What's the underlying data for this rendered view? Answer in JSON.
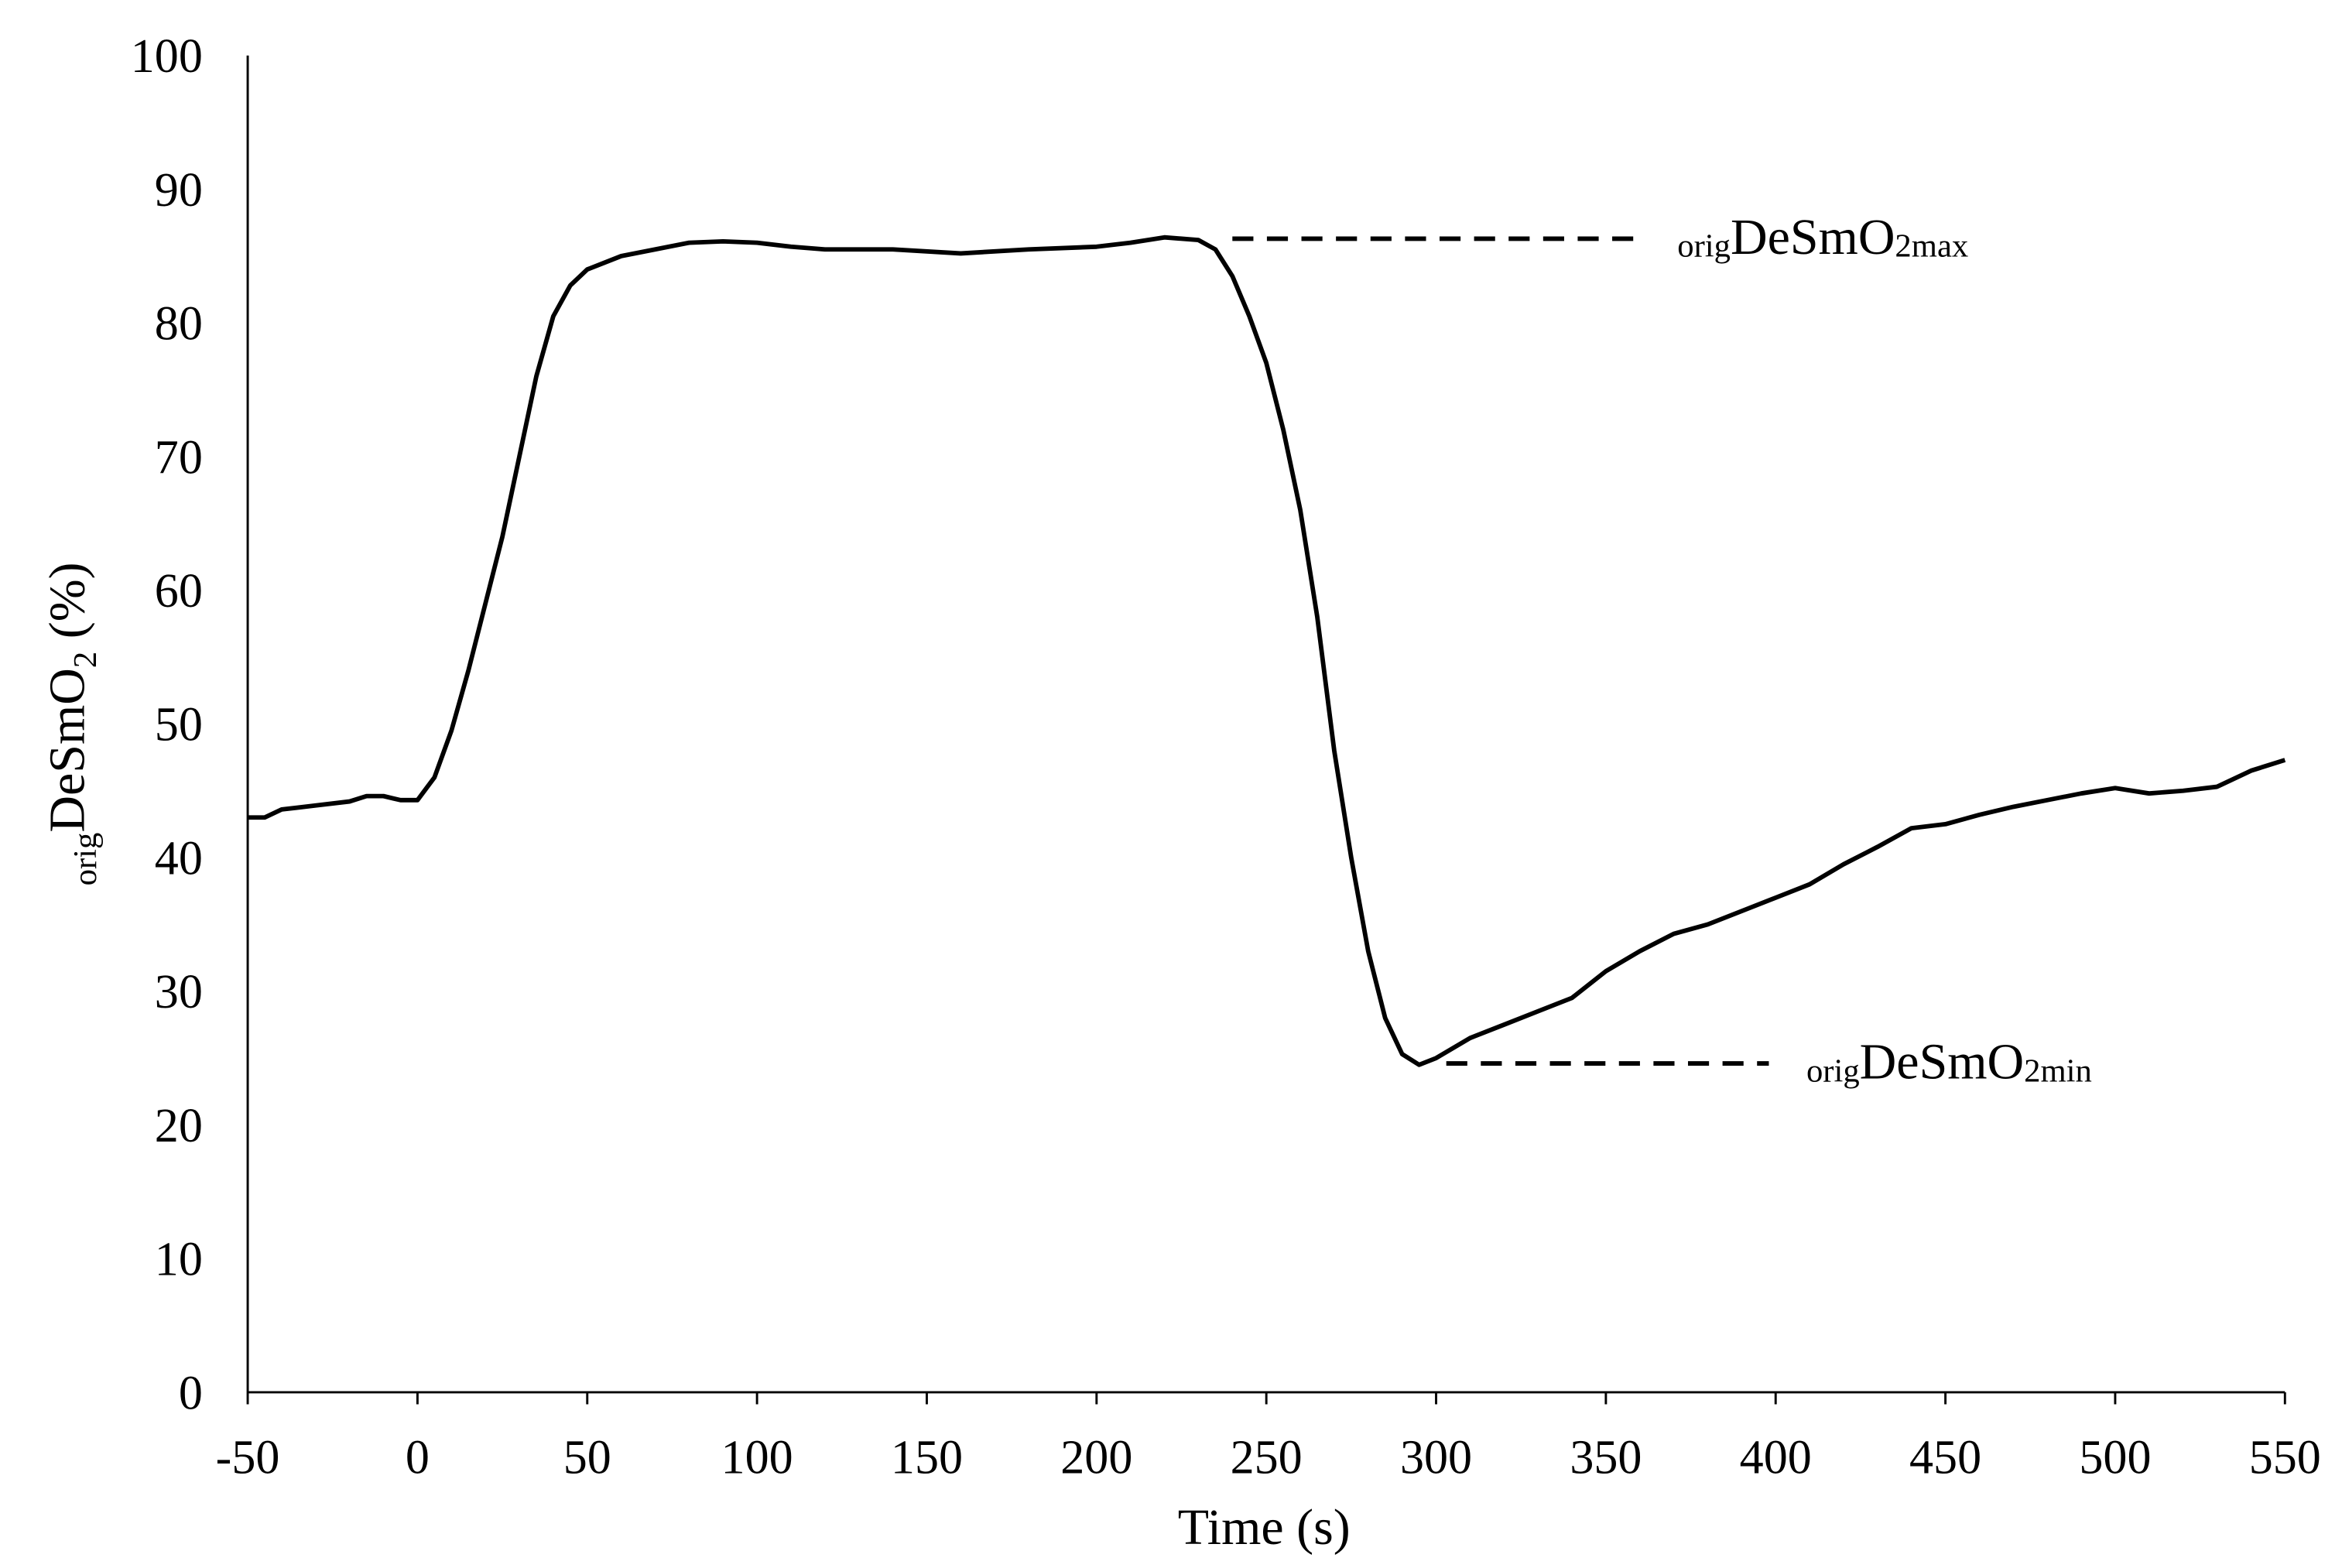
{
  "chart_data": {
    "type": "line",
    "x_label": "Time (s)",
    "y_label": {
      "prefix": "orig",
      "text": "DeSmO",
      "suffix": "2",
      "unit": " (%)"
    },
    "x": [
      -50,
      -45,
      -40,
      -30,
      -20,
      -15,
      -10,
      -5,
      0,
      5,
      10,
      15,
      20,
      25,
      30,
      35,
      40,
      45,
      50,
      60,
      70,
      80,
      90,
      100,
      110,
      120,
      140,
      160,
      180,
      200,
      210,
      220,
      230,
      235,
      240,
      245,
      250,
      255,
      260,
      265,
      270,
      275,
      280,
      285,
      290,
      295,
      300,
      310,
      320,
      330,
      340,
      350,
      360,
      370,
      380,
      390,
      400,
      410,
      420,
      430,
      440,
      450,
      460,
      470,
      480,
      490,
      500,
      510,
      520,
      530,
      540,
      550
    ],
    "values": [
      43,
      43,
      43.6,
      43.9,
      44.2,
      44.6,
      44.6,
      44.3,
      44.3,
      46,
      49.5,
      54,
      59,
      64,
      70,
      76,
      80.5,
      82.8,
      84,
      85,
      85.5,
      86,
      86.1,
      86,
      85.7,
      85.5,
      85.5,
      85.2,
      85.5,
      85.7,
      86,
      86.4,
      86.2,
      85.5,
      83.5,
      80.5,
      77,
      72,
      66,
      58,
      48,
      40,
      33,
      28,
      25.3,
      24.5,
      25,
      26.5,
      27.5,
      28.5,
      29.5,
      31.5,
      33,
      34.3,
      35,
      36,
      37,
      38,
      39.5,
      40.8,
      42.2,
      42.5,
      43.2,
      43.8,
      44.3,
      44.8,
      45.2,
      44.8,
      45,
      45.3,
      46.5,
      47.3
    ],
    "color": "#000000",
    "xlim": [
      -50,
      550
    ],
    "xticks": [
      -50,
      0,
      50,
      100,
      150,
      200,
      250,
      300,
      350,
      400,
      450,
      500,
      550
    ],
    "ylim": [
      0,
      100
    ],
    "yticks": [
      0,
      10,
      20,
      30,
      40,
      50,
      60,
      70,
      80,
      90,
      100
    ],
    "grid": false,
    "annotations": [
      {
        "prefix": "orig",
        "text": "DeSmO",
        "suffix": "2max",
        "value": 86.3,
        "x_range": [
          240,
          360
        ]
      },
      {
        "prefix": "orig",
        "text": "DeSmO",
        "suffix": "2min",
        "value": 24.6,
        "x_range": [
          303,
          398
        ]
      }
    ]
  }
}
